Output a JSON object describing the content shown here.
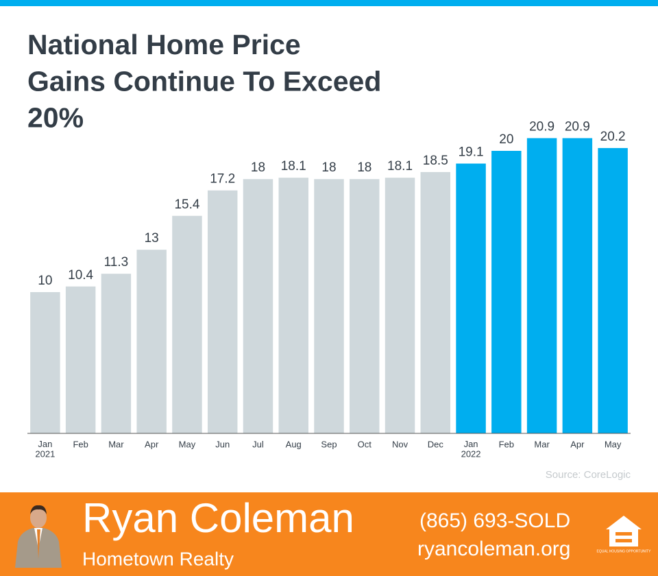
{
  "chart_data": {
    "type": "bar",
    "title": "National Home Price Gains Continue To Exceed 20%",
    "categories": [
      "Jan\n2021",
      "Feb",
      "Mar",
      "Apr",
      "May",
      "Jun",
      "Jul",
      "Aug",
      "Sep",
      "Oct",
      "Nov",
      "Dec",
      "Jan\n2022",
      "Feb",
      "Mar",
      "Apr",
      "May"
    ],
    "values": [
      10,
      10.4,
      11.3,
      13,
      15.4,
      17.2,
      18,
      18.1,
      18,
      18,
      18.1,
      18.5,
      19.1,
      20,
      20.9,
      20.9,
      20.2
    ],
    "colors": [
      "#cfd8dc",
      "#cfd8dc",
      "#cfd8dc",
      "#cfd8dc",
      "#cfd8dc",
      "#cfd8dc",
      "#cfd8dc",
      "#cfd8dc",
      "#cfd8dc",
      "#cfd8dc",
      "#cfd8dc",
      "#cfd8dc",
      "#00aeef",
      "#00aeef",
      "#00aeef",
      "#00aeef",
      "#00aeef"
    ],
    "ylim": [
      0,
      25
    ],
    "source": "Source: CoreLogic"
  },
  "footer": {
    "name": "Ryan Coleman",
    "company": "Hometown Realty",
    "phone": "(865) 693-SOLD",
    "website": "ryancoleman.org",
    "logo_text": "EQUAL HOUSING OPPORTUNITY"
  }
}
